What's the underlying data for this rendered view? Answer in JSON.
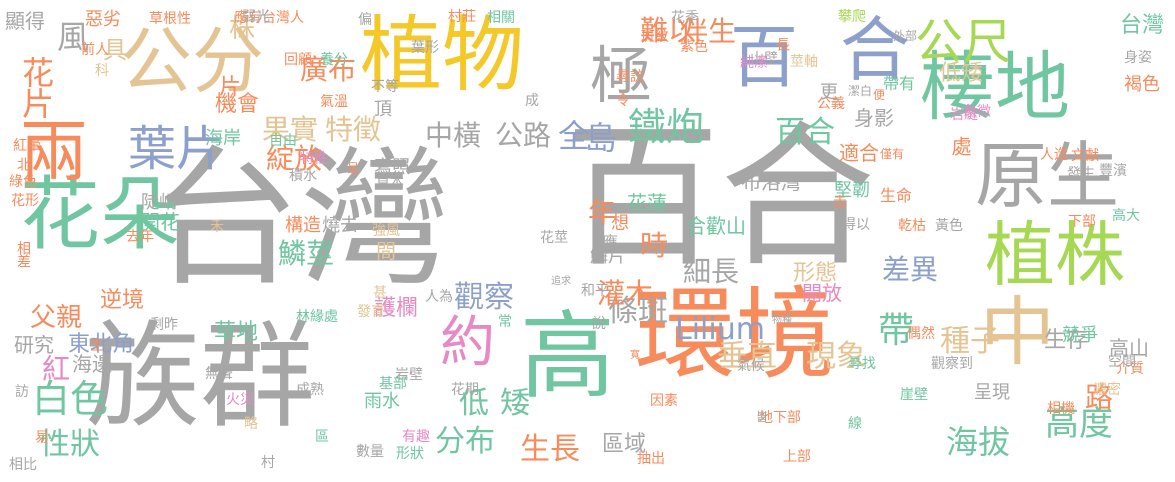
{
  "palette": {
    "gray": "#a6a6a6",
    "orange": "#f78b5c",
    "yellow": "#f5c82a",
    "green": "#6fc6a0",
    "blue": "#8da0cb",
    "pink": "#e78ac3",
    "lime": "#a6d854",
    "tan": "#e5c494"
  },
  "words": [
    "台灣",
    "百合",
    "族群",
    "環境",
    "高",
    "植物",
    "公分",
    "花朵",
    "兩",
    "棲地",
    "合",
    "百",
    "中",
    "原生",
    "植株",
    "約",
    "葉片",
    "極",
    "公尺",
    "鐵炮",
    "低",
    "矮",
    "生長",
    "分布",
    "Lilium",
    "條斑",
    "垂直",
    "現象",
    "白色",
    "性狀",
    "海拔",
    "高度",
    "路",
    "花片",
    "廣布",
    "果實",
    "特徵",
    "中橫",
    "公路",
    "全",
    "島",
    "綻放",
    "百合",
    "細長",
    "差異",
    "合歡山",
    "種子",
    "觀察",
    "灌木",
    "時",
    "年",
    "鱗莖",
    "護欄",
    "開花",
    "花蓮",
    "布洛灣",
    "堅韌",
    "形態",
    "開放",
    "帶",
    "高山",
    "生存",
    "區域",
    "父親",
    "逆境",
    "機會",
    "海岸",
    "研究",
    "東北角",
    "海邊",
    "紅",
    "草地",
    "林緣處",
    "發育",
    "雨水",
    "岩壁",
    "身影",
    "處",
    "適合",
    "低矮",
    "褐色",
    "台灣",
    "難以",
    "伴生",
    "風",
    "具",
    "株",
    "片",
    "顯得",
    "惡劣",
    "草根性",
    "應有台灣人",
    "弱光",
    "偏",
    "葉形",
    "村莊",
    "相關",
    "花季",
    "攀爬",
    "前人",
    "科",
    "回顧",
    "養分",
    "氣溫",
    "頂",
    "成",
    "令",
    "尋訪",
    "斑紋",
    "紫色",
    "長",
    "莖軸",
    "外部",
    "身姿",
    "山壁",
    "潔白",
    "便",
    "帶有",
    "更",
    "公義",
    "純潔",
    "不等",
    "象徵",
    "岩縫",
    "僅有",
    "人造",
    "發生",
    "文獻",
    "豐濱",
    "下部",
    "高大",
    "生命",
    "得以",
    "乾枯",
    "黃色",
    "走",
    "紅暈",
    "北",
    "綠色",
    "花形",
    "自由",
    "特性",
    "呈",
    "積水",
    "寫照",
    "草本",
    "陡峭",
    "構造",
    "燒去",
    "禾",
    "強風",
    "間",
    "花莖",
    "應",
    "想",
    "鱗片",
    "去年",
    "相差",
    "甚",
    "人為",
    "剩昨",
    "生",
    "追求",
    "和平",
    "物種",
    "寬",
    "說",
    "常",
    "呈現",
    "偶然",
    "競爭",
    "氣候",
    "尋找",
    "介質",
    "空間",
    "觀察到",
    "崖壁",
    "濃密",
    "相機",
    "無聲",
    "基部",
    "火災",
    "花期",
    "因素",
    "地下部",
    "皆",
    "線",
    "訪",
    "成熟",
    "易",
    "略",
    "區",
    "有趣",
    "數量",
    "形狀",
    "村",
    "相比",
    "抽出",
    "上部"
  ]
}
